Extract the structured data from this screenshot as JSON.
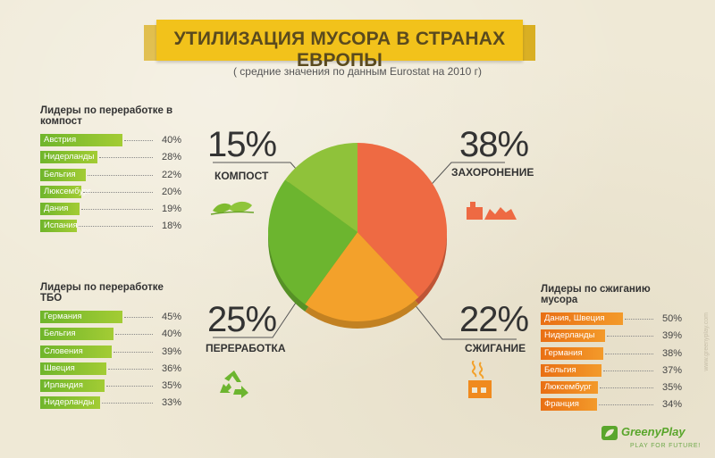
{
  "title": "УТИЛИЗАЦИЯ МУСОРА В СТРАНАХ ЕВРОПЫ",
  "subtitle": "( средние значения по данным Eurostat на 2010 г)",
  "chart_data": [
    {
      "type": "pie",
      "categories": [
        "ЗАХОРОНЕНИЕ",
        "СЖИГАНИЕ",
        "ПЕРЕРАБОТКА",
        "КОМПОСТ"
      ],
      "values": [
        38,
        22,
        25,
        15
      ],
      "colors": [
        "#ee6a43",
        "#f3a12b",
        "#6cb52f",
        "#8fc23a"
      ],
      "labels": [
        "38%",
        "22%",
        "25%",
        "15%"
      ]
    },
    {
      "type": "bar",
      "title": "Лидеры по переработке в компост",
      "categories": [
        "Австрия",
        "Нидерланды",
        "Бельгия",
        "Люксембург",
        "Дания",
        "Испания"
      ],
      "values": [
        40,
        28,
        22,
        20,
        19,
        18
      ],
      "value_labels": [
        "40%",
        "28%",
        "22%",
        "20%",
        "19%",
        "18%"
      ],
      "color": "#7fbb2f"
    },
    {
      "type": "bar",
      "title": "Лидеры по переработке ТБО",
      "categories": [
        "Германия",
        "Бельгия",
        "Словения",
        "Швеция",
        "Ирландия",
        "Нидерланды"
      ],
      "values": [
        45,
        40,
        39,
        36,
        35,
        33
      ],
      "value_labels": [
        "45%",
        "40%",
        "39%",
        "36%",
        "35%",
        "33%"
      ],
      "color": "#7fbb2f"
    },
    {
      "type": "bar",
      "title": "Лидеры по сжиганию мусора",
      "categories": [
        "Дания, Швеция",
        "Нидерланды",
        "Германия",
        "Бельгия",
        "Люксембург",
        "Франция"
      ],
      "values": [
        50,
        39,
        38,
        37,
        35,
        34
      ],
      "value_labels": [
        "50%",
        "39%",
        "38%",
        "37%",
        "35%",
        "34%"
      ],
      "color": "#f08a1e"
    }
  ],
  "pie_labels": {
    "compost": {
      "pct": "15%",
      "name": "КОМПОСТ"
    },
    "landfill": {
      "pct": "38%",
      "name": "ЗАХОРОНЕНИЕ"
    },
    "recycling": {
      "pct": "25%",
      "name": "ПЕРЕРАБОТКА"
    },
    "incineration": {
      "pct": "22%",
      "name": "СЖИГАНИЕ"
    }
  },
  "brand": {
    "name": "GreenyPlay",
    "tagline": "PLAY FOR FUTURE!",
    "side_note": "www.greenyplay.com"
  }
}
